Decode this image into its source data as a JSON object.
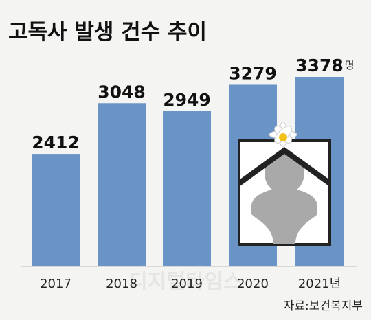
{
  "chart_data": {
    "type": "bar",
    "title": "고독사 발생 건수 추이",
    "categories": [
      "2017",
      "2018",
      "2019",
      "2020",
      "2021년"
    ],
    "values": [
      2412,
      3048,
      2949,
      3279,
      3378
    ],
    "value_unit": "명",
    "color": "#6a93c6",
    "ylim": [
      1000,
      3800
    ],
    "source": "자료:보건복지부",
    "watermark": "디지털타임스"
  }
}
